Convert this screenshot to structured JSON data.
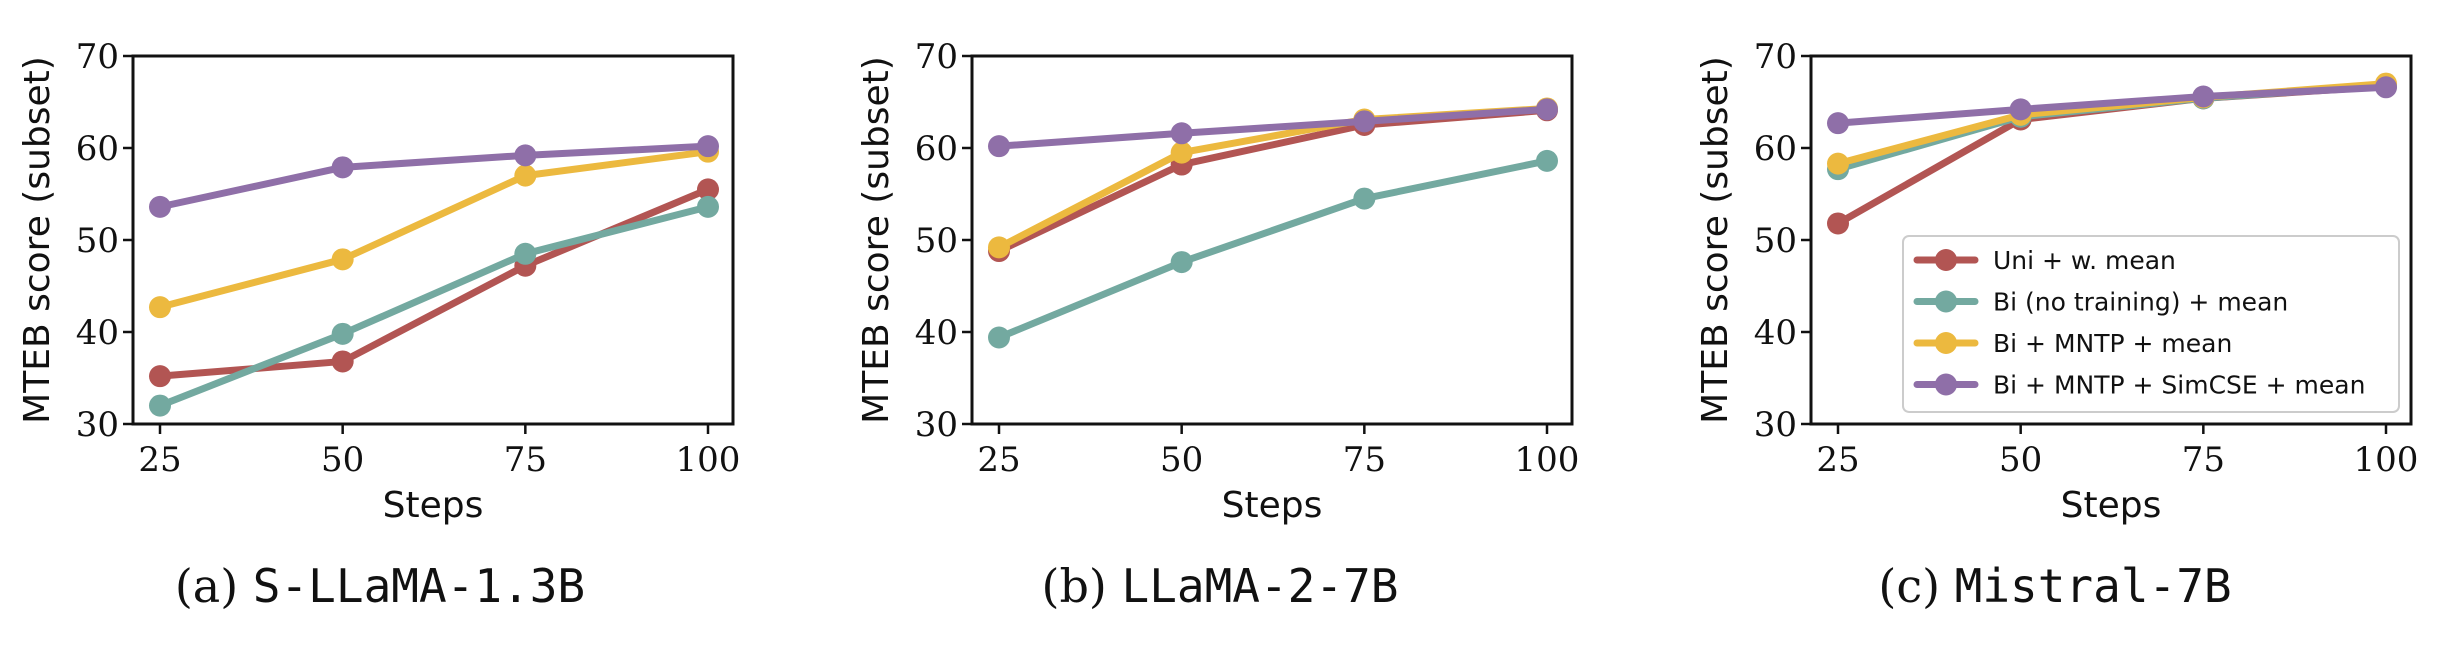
{
  "colors": {
    "Uni + w. mean": "#b25553",
    "Bi (no training) + mean": "#73a9a0",
    "Bi + MNTP + mean": "#ecb93f",
    "Bi + MNTP + SimCSE + mean": "#8f6fa8"
  },
  "chart_data": [
    {
      "type": "line",
      "caption_prefix": "(a)",
      "caption_model": "S-LLaMA-1.3B",
      "xlabel": "Steps",
      "ylabel": "MTEB score (subset)",
      "x": [
        25,
        50,
        75,
        100
      ],
      "xticks": [
        "25",
        "50",
        "75",
        "100"
      ],
      "yticks": [
        "30",
        "40",
        "50",
        "60",
        "70"
      ],
      "ylim": [
        30,
        70
      ],
      "legend": false,
      "series": [
        {
          "name": "Uni + w. mean",
          "values": [
            35.2,
            36.8,
            47.2,
            55.5
          ]
        },
        {
          "name": "Bi (no training) + mean",
          "values": [
            32.0,
            39.8,
            48.5,
            53.6
          ]
        },
        {
          "name": "Bi + MNTP + mean",
          "values": [
            42.7,
            47.9,
            57.0,
            59.6
          ]
        },
        {
          "name": "Bi + MNTP + SimCSE + mean",
          "values": [
            53.6,
            57.9,
            59.2,
            60.2
          ]
        }
      ]
    },
    {
      "type": "line",
      "caption_prefix": "(b)",
      "caption_model": "LLaMA-2-7B",
      "xlabel": "Steps",
      "ylabel": "MTEB score (subset)",
      "x": [
        25,
        50,
        75,
        100
      ],
      "xticks": [
        "25",
        "50",
        "75",
        "100"
      ],
      "yticks": [
        "30",
        "40",
        "50",
        "60",
        "70"
      ],
      "ylim": [
        30,
        70
      ],
      "legend": false,
      "series": [
        {
          "name": "Uni + w. mean",
          "values": [
            48.8,
            58.2,
            62.5,
            64.1
          ]
        },
        {
          "name": "Bi (no training) + mean",
          "values": [
            39.4,
            47.6,
            54.5,
            58.6
          ]
        },
        {
          "name": "Bi + MNTP + mean",
          "values": [
            49.2,
            59.5,
            63.1,
            64.3
          ]
        },
        {
          "name": "Bi + MNTP + SimCSE + mean",
          "values": [
            60.2,
            61.6,
            62.9,
            64.2
          ]
        }
      ]
    },
    {
      "type": "line",
      "caption_prefix": "(c)",
      "caption_model": "Mistral-7B",
      "xlabel": "Steps",
      "ylabel": "MTEB score (subset)",
      "x": [
        25,
        50,
        75,
        100
      ],
      "xticks": [
        "25",
        "50",
        "75",
        "100"
      ],
      "yticks": [
        "30",
        "40",
        "50",
        "60",
        "70"
      ],
      "ylim": [
        30,
        70
      ],
      "legend": true,
      "legend_position": "lower-right",
      "series": [
        {
          "name": "Uni + w. mean",
          "values": [
            51.8,
            63.1,
            65.4,
            66.7
          ]
        },
        {
          "name": "Bi (no training) + mean",
          "values": [
            57.7,
            63.4,
            65.4,
            66.8
          ]
        },
        {
          "name": "Bi + MNTP + mean",
          "values": [
            58.3,
            63.6,
            65.5,
            67.0
          ]
        },
        {
          "name": "Bi + MNTP + SimCSE + mean",
          "values": [
            62.7,
            64.2,
            65.6,
            66.6
          ]
        }
      ]
    }
  ]
}
